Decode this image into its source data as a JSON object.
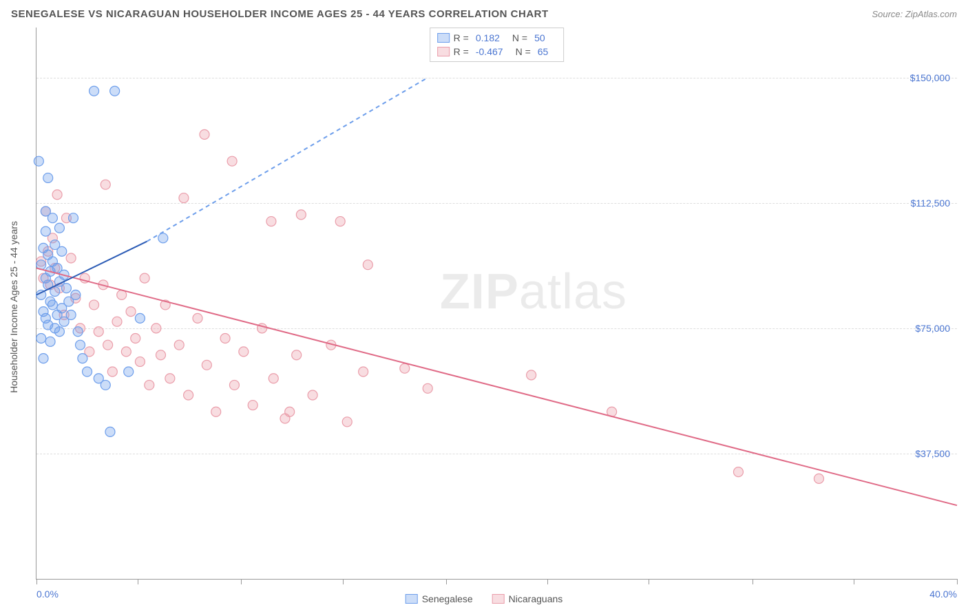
{
  "header": {
    "title": "SENEGALESE VS NICARAGUAN HOUSEHOLDER INCOME AGES 25 - 44 YEARS CORRELATION CHART",
    "source_prefix": "Source: ",
    "source_name": "ZipAtlas.com"
  },
  "chart": {
    "type": "scatter",
    "y_axis_title": "Householder Income Ages 25 - 44 years",
    "xlim": [
      0,
      40
    ],
    "ylim": [
      0,
      165000
    ],
    "x_min_label": "0.0%",
    "x_max_label": "40.0%",
    "x_ticks_pct": [
      0,
      4.4,
      8.9,
      13.3,
      17.8,
      22.2,
      26.6,
      31.1,
      35.5,
      40
    ],
    "y_gridlines": [
      37500,
      75000,
      112500,
      150000
    ],
    "y_tick_labels": [
      "$37,500",
      "$75,000",
      "$112,500",
      "$150,000"
    ],
    "background_color": "#ffffff",
    "grid_color": "#dddddd",
    "axis_color": "#999999",
    "tick_label_color": "#4a75d1",
    "marker_radius": 7,
    "marker_opacity": 0.45,
    "series": {
      "senegalese": {
        "label": "Senegalese",
        "color": "#6d9eeb",
        "fill": "rgba(109,158,235,0.35)",
        "stroke": "#6d9eeb",
        "r_value": "0.182",
        "n_value": "50",
        "regression": {
          "x1": 0,
          "y1": 85000,
          "x2": 4.8,
          "y2": 101000,
          "dash_x2": 17,
          "dash_y2": 150000
        },
        "points": [
          [
            0.1,
            125000
          ],
          [
            0.2,
            94000
          ],
          [
            0.2,
            85000
          ],
          [
            0.2,
            72000
          ],
          [
            0.3,
            99000
          ],
          [
            0.3,
            80000
          ],
          [
            0.3,
            66000
          ],
          [
            0.4,
            110000
          ],
          [
            0.4,
            104000
          ],
          [
            0.4,
            90000
          ],
          [
            0.4,
            78000
          ],
          [
            0.5,
            120000
          ],
          [
            0.5,
            97000
          ],
          [
            0.5,
            88000
          ],
          [
            0.5,
            76000
          ],
          [
            0.6,
            92000
          ],
          [
            0.6,
            83000
          ],
          [
            0.6,
            71000
          ],
          [
            0.7,
            108000
          ],
          [
            0.7,
            95000
          ],
          [
            0.7,
            82000
          ],
          [
            0.8,
            100000
          ],
          [
            0.8,
            86000
          ],
          [
            0.8,
            75000
          ],
          [
            0.9,
            93000
          ],
          [
            0.9,
            79000
          ],
          [
            1.0,
            105000
          ],
          [
            1.0,
            89000
          ],
          [
            1.0,
            74000
          ],
          [
            1.1,
            98000
          ],
          [
            1.1,
            81000
          ],
          [
            1.2,
            91000
          ],
          [
            1.2,
            77000
          ],
          [
            1.3,
            87000
          ],
          [
            1.4,
            83000
          ],
          [
            1.5,
            79000
          ],
          [
            1.6,
            108000
          ],
          [
            1.7,
            85000
          ],
          [
            1.8,
            74000
          ],
          [
            1.9,
            70000
          ],
          [
            2.0,
            66000
          ],
          [
            2.2,
            62000
          ],
          [
            2.5,
            146000
          ],
          [
            2.7,
            60000
          ],
          [
            3.0,
            58000
          ],
          [
            3.4,
            146000
          ],
          [
            3.2,
            44000
          ],
          [
            4.0,
            62000
          ],
          [
            4.5,
            78000
          ],
          [
            5.5,
            102000
          ]
        ]
      },
      "nicaraguans": {
        "label": "Nicaraguans",
        "color": "#ea9daa",
        "fill": "rgba(234,157,170,0.35)",
        "stroke": "#ea9daa",
        "r_value": "-0.467",
        "n_value": "65",
        "regression": {
          "x1": 0,
          "y1": 93000,
          "x2": 40,
          "y2": 22000
        },
        "points": [
          [
            0.2,
            95000
          ],
          [
            0.3,
            90000
          ],
          [
            0.4,
            110000
          ],
          [
            0.5,
            98000
          ],
          [
            0.6,
            88000
          ],
          [
            0.7,
            102000
          ],
          [
            0.8,
            93000
          ],
          [
            0.9,
            115000
          ],
          [
            1.0,
            87000
          ],
          [
            1.2,
            79000
          ],
          [
            1.3,
            108000
          ],
          [
            1.5,
            96000
          ],
          [
            1.7,
            84000
          ],
          [
            1.9,
            75000
          ],
          [
            2.1,
            90000
          ],
          [
            2.3,
            68000
          ],
          [
            2.5,
            82000
          ],
          [
            2.7,
            74000
          ],
          [
            2.9,
            88000
          ],
          [
            3.1,
            70000
          ],
          [
            3.0,
            118000
          ],
          [
            3.3,
            62000
          ],
          [
            3.5,
            77000
          ],
          [
            3.7,
            85000
          ],
          [
            3.9,
            68000
          ],
          [
            4.1,
            80000
          ],
          [
            4.3,
            72000
          ],
          [
            4.5,
            65000
          ],
          [
            4.7,
            90000
          ],
          [
            4.9,
            58000
          ],
          [
            5.2,
            75000
          ],
          [
            5.4,
            67000
          ],
          [
            5.6,
            82000
          ],
          [
            5.8,
            60000
          ],
          [
            6.2,
            70000
          ],
          [
            6.6,
            55000
          ],
          [
            6.4,
            114000
          ],
          [
            7.0,
            78000
          ],
          [
            7.4,
            64000
          ],
          [
            7.3,
            133000
          ],
          [
            7.8,
            50000
          ],
          [
            8.2,
            72000
          ],
          [
            8.6,
            58000
          ],
          [
            8.5,
            125000
          ],
          [
            9.0,
            68000
          ],
          [
            9.4,
            52000
          ],
          [
            9.8,
            75000
          ],
          [
            10.3,
            60000
          ],
          [
            10.2,
            107000
          ],
          [
            10.8,
            48000
          ],
          [
            11.5,
            109000
          ],
          [
            11.3,
            67000
          ],
          [
            12.0,
            55000
          ],
          [
            12.8,
            70000
          ],
          [
            13.2,
            107000
          ],
          [
            13.5,
            47000
          ],
          [
            14.4,
            94000
          ],
          [
            14.2,
            62000
          ],
          [
            16.0,
            63000
          ],
          [
            17.0,
            57000
          ],
          [
            21.5,
            61000
          ],
          [
            25.0,
            50000
          ],
          [
            30.5,
            32000
          ],
          [
            34.0,
            30000
          ],
          [
            11.0,
            50000
          ]
        ]
      }
    }
  },
  "legend_top": {
    "r_label": "R =",
    "n_label": "N ="
  },
  "watermark": {
    "part1": "ZIP",
    "part2": "atlas"
  }
}
